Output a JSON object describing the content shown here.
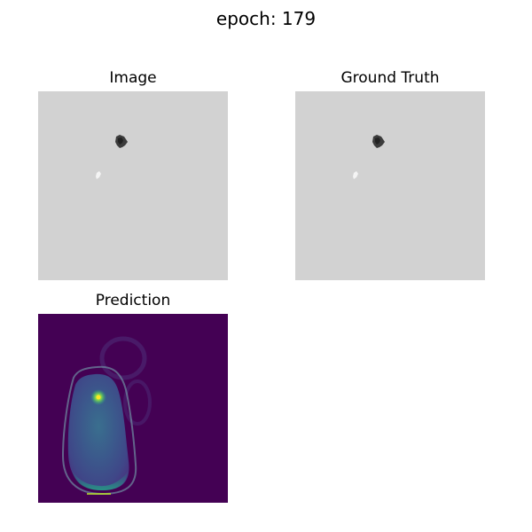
{
  "figure": {
    "suptitle": "epoch: 179"
  },
  "panels": {
    "image": {
      "title": "Image"
    },
    "ground_truth": {
      "title": "Ground Truth"
    },
    "prediction": {
      "title": "Prediction"
    }
  },
  "colors": {
    "gray_background": "#d2d2d2",
    "viridis_dark": "#440154",
    "viridis_mid": "#2a788e",
    "viridis_bright": "#fde725"
  }
}
